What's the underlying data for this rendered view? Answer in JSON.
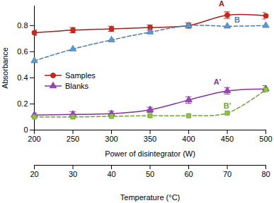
{
  "chart_data": {
    "type": "line",
    "x_label": "Power of disintegrator (W)",
    "y_label": "Absorbance",
    "x2_label": "Temperature (°C)",
    "x": [
      200,
      250,
      300,
      350,
      400,
      450,
      500
    ],
    "xlim": [
      200,
      500
    ],
    "xticks": [
      200,
      250,
      300,
      350,
      400,
      450,
      500
    ],
    "x2lim": [
      20,
      80
    ],
    "x2ticks": [
      20,
      30,
      40,
      50,
      60,
      70,
      80
    ],
    "ylim": [
      0,
      0.95
    ],
    "yticks": [
      0,
      0.2,
      0.4,
      0.6,
      0.8
    ],
    "legend": "lower left",
    "series": [
      {
        "name": "Samples",
        "annotation": "A",
        "color": "#c8281e",
        "marker": "circle",
        "line_style": "solid",
        "values": [
          0.745,
          0.765,
          0.775,
          0.785,
          0.8,
          0.88,
          0.875
        ],
        "errors": [
          0.02,
          0.02,
          0.02,
          0.02,
          0.02,
          0.025,
          0.025
        ]
      },
      {
        "name": "Samples",
        "annotation": "B",
        "color": "#5b9bd5",
        "marker": "triangle",
        "line_style": "dashed",
        "values": [
          0.53,
          0.62,
          0.69,
          0.75,
          0.8,
          0.795,
          0.8
        ]
      },
      {
        "name": "Blanks",
        "annotation": "A'",
        "color": "#a040c0",
        "marker": "triangle",
        "line_style": "solid",
        "values": [
          0.115,
          0.12,
          0.125,
          0.155,
          0.23,
          0.3,
          0.315
        ],
        "errors": [
          0.015,
          0.02,
          0.02,
          0.02,
          0.025,
          0.025,
          0.025
        ]
      },
      {
        "name": "Blanks",
        "annotation": "B'",
        "color": "#8cc63f",
        "marker": "square",
        "line_style": "dashed",
        "values": [
          0.1,
          0.1,
          0.105,
          0.11,
          0.11,
          0.13,
          0.31
        ]
      }
    ]
  }
}
